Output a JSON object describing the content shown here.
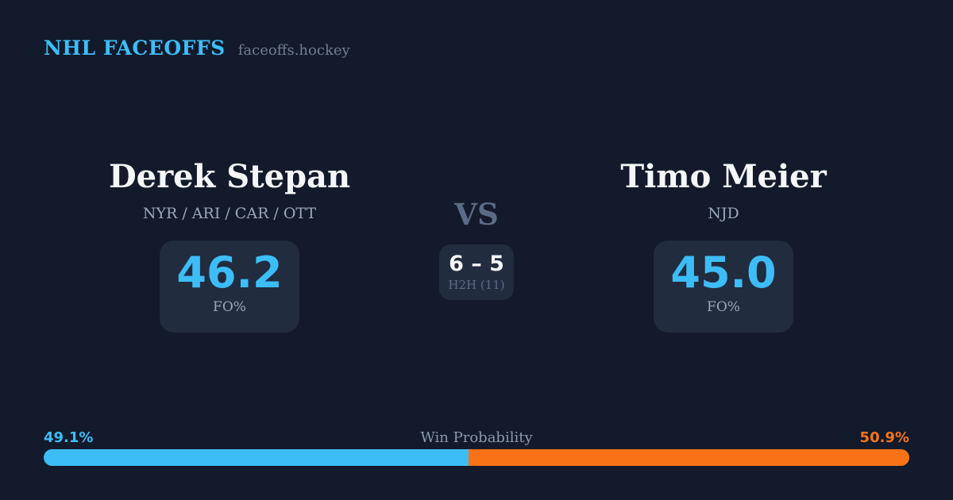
{
  "brand": {
    "title": "NHL FACEOFFS",
    "domain": "faceoffs.hockey"
  },
  "matchup": {
    "player_left": {
      "name": "Derek Stepan",
      "teams": "NYR / ARI / CAR / OTT",
      "fo_pct": "46.2",
      "fo_label": "FO%"
    },
    "player_right": {
      "name": "Timo Meier",
      "teams": "NJD",
      "fo_pct": "45.0",
      "fo_label": "FO%"
    },
    "vs_label": "VS",
    "h2h": {
      "score": "6 – 5",
      "label": "H2H (11)"
    }
  },
  "win_probability": {
    "title": "Win Probability",
    "left_pct_label": "49.1%",
    "right_pct_label": "50.9%",
    "left_value": 49.1,
    "right_value": 50.9,
    "colors": {
      "left": "#3dbdf8",
      "right": "#f97316"
    }
  },
  "theme": {
    "background": "#121a2b",
    "card_background": "#212c3e",
    "accent_blue": "#3dbdf8",
    "accent_orange": "#f97316",
    "text_primary": "#f4f6f9",
    "text_muted": "#9aa7bc",
    "text_slate": "#5b6b85"
  }
}
